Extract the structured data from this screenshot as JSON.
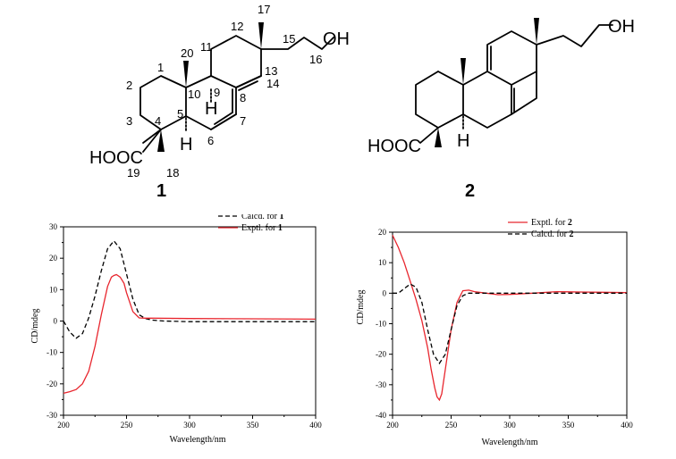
{
  "structures": {
    "compound1": {
      "id_label": "1",
      "atom_labels": {
        "hydroxyl": "OH",
        "carboxyl": "HOOC",
        "hydrogen_9": "H",
        "hydrogen_5": "H"
      },
      "locants": [
        "1",
        "2",
        "3",
        "4",
        "5",
        "6",
        "7",
        "8",
        "9",
        "10",
        "11",
        "12",
        "13",
        "14",
        "15",
        "16",
        "17",
        "18",
        "19",
        "20"
      ]
    },
    "compound2": {
      "id_label": "2",
      "atom_labels": {
        "hydroxyl": "OH",
        "carboxyl": "HOOC",
        "hydrogen_5": "H"
      }
    }
  },
  "chart_data": [
    {
      "type": "line",
      "title": "",
      "xlabel": "Wavelength/nm",
      "ylabel": "CD/mdeg",
      "xlim": [
        200,
        400
      ],
      "ylim": [
        -30,
        30
      ],
      "xticks": [
        200,
        250,
        300,
        350,
        400
      ],
      "yticks": [
        -30,
        -20,
        -10,
        0,
        10,
        20,
        30
      ],
      "legend_position": "top-center",
      "series": [
        {
          "name": "Calcd. for",
          "name_bold": "1",
          "style": "dashed",
          "color": "#000000",
          "x": [
            200,
            205,
            210,
            215,
            220,
            225,
            230,
            235,
            240,
            245,
            250,
            255,
            260,
            265,
            270,
            280,
            300,
            350,
            400
          ],
          "y": [
            0,
            -3.5,
            -5.5,
            -4,
            1,
            8,
            16,
            23,
            25.5,
            23,
            15,
            7,
            2,
            0.8,
            0.3,
            0,
            -0.2,
            -0.2,
            -0.2
          ]
        },
        {
          "name": "Exptl. for",
          "name_bold": "1",
          "style": "solid",
          "color": "#e8262e",
          "x": [
            200,
            205,
            210,
            215,
            220,
            225,
            230,
            235,
            238,
            240,
            242,
            245,
            248,
            250,
            255,
            260,
            265,
            270,
            300,
            350,
            400
          ],
          "y": [
            -23,
            -22.5,
            -21.8,
            -20,
            -16,
            -8,
            2,
            11,
            14,
            14.5,
            14.8,
            14,
            12,
            9,
            3,
            1,
            0.9,
            0.9,
            0.8,
            0.7,
            0.6
          ]
        }
      ]
    },
    {
      "type": "line",
      "title": "",
      "xlabel": "Wavelength/nm",
      "ylabel": "CD/mdeg",
      "xlim": [
        200,
        400
      ],
      "ylim": [
        -40,
        20
      ],
      "xticks": [
        200,
        250,
        300,
        350,
        400
      ],
      "yticks": [
        -40,
        -30,
        -20,
        -10,
        0,
        10,
        20
      ],
      "legend_position": "top-center",
      "series": [
        {
          "name": "Exptl. for",
          "name_bold": "2",
          "style": "solid",
          "color": "#e8262e",
          "x": [
            200,
            205,
            210,
            215,
            220,
            225,
            230,
            233,
            236,
            238,
            240,
            242,
            245,
            250,
            255,
            260,
            265,
            270,
            280,
            290,
            300,
            320,
            340,
            360,
            380,
            400
          ],
          "y": [
            19,
            15,
            10,
            4,
            -2,
            -9,
            -18,
            -25,
            -31,
            -34,
            -35,
            -33,
            -25,
            -12,
            -3,
            0.8,
            1,
            0.5,
            0,
            -0.5,
            -0.4,
            0,
            0.5,
            0.4,
            0.3,
            0.2
          ],
          "note": "experimental"
        },
        {
          "name": "Calcd. for",
          "name_bold": "2",
          "style": "dashed",
          "color": "#000000",
          "x": [
            200,
            205,
            210,
            215,
            220,
            225,
            230,
            235,
            240,
            245,
            250,
            255,
            260,
            265,
            270,
            280,
            300,
            350,
            400
          ],
          "y": [
            0,
            0,
            1.5,
            3,
            2,
            -3,
            -12,
            -20,
            -23,
            -20,
            -12,
            -4,
            -0.8,
            0,
            0,
            0,
            0,
            0,
            0
          ]
        }
      ]
    }
  ]
}
